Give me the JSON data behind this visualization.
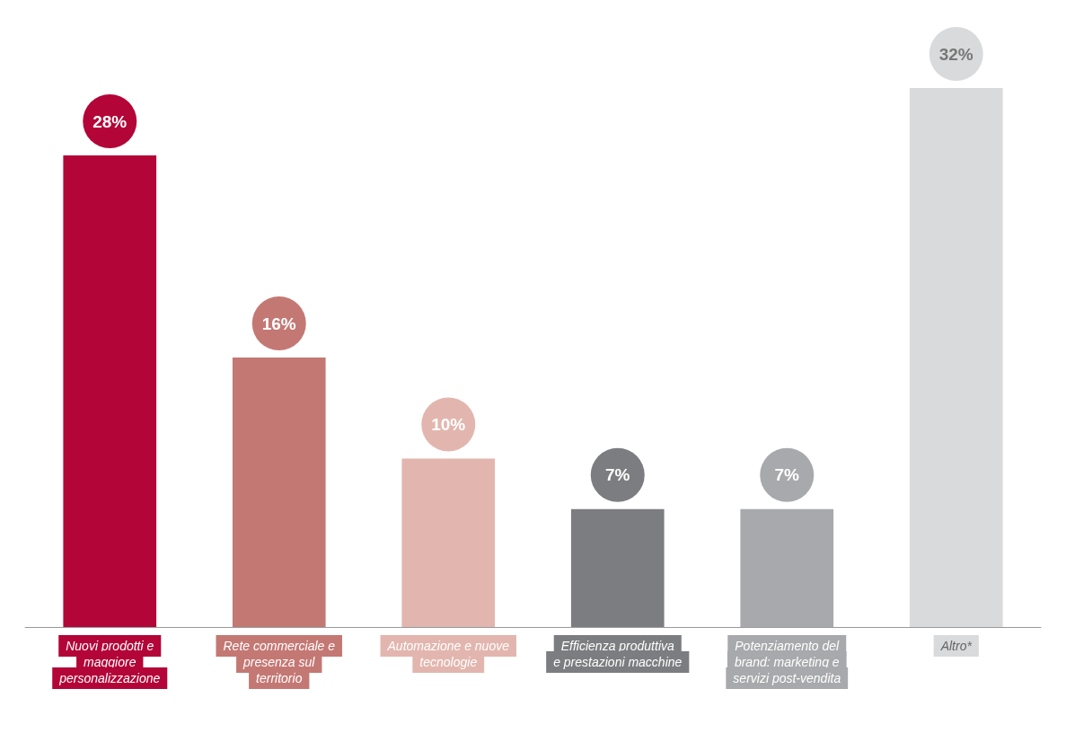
{
  "chart_data": {
    "type": "bar",
    "categories": [
      "Nuovi prodotti e maggiore personalizzazione",
      "Rete commerciale e presenza sul territorio",
      "Automazione e nuove tecnologie",
      "Efficienza produttiva e prestazioni macchine",
      "Potenziamento del brand: marketing e servizi post-vendita",
      "Altro*"
    ],
    "values": [
      28,
      16,
      10,
      7,
      7,
      32
    ],
    "colors": [
      "#b30537",
      "#c47874",
      "#e2b6ae",
      "#7c7d80",
      "#a8a9ac",
      "#d9dadb"
    ],
    "value_labels": [
      "28%",
      "16%",
      "10%",
      "7%",
      "7%",
      "32%"
    ]
  }
}
